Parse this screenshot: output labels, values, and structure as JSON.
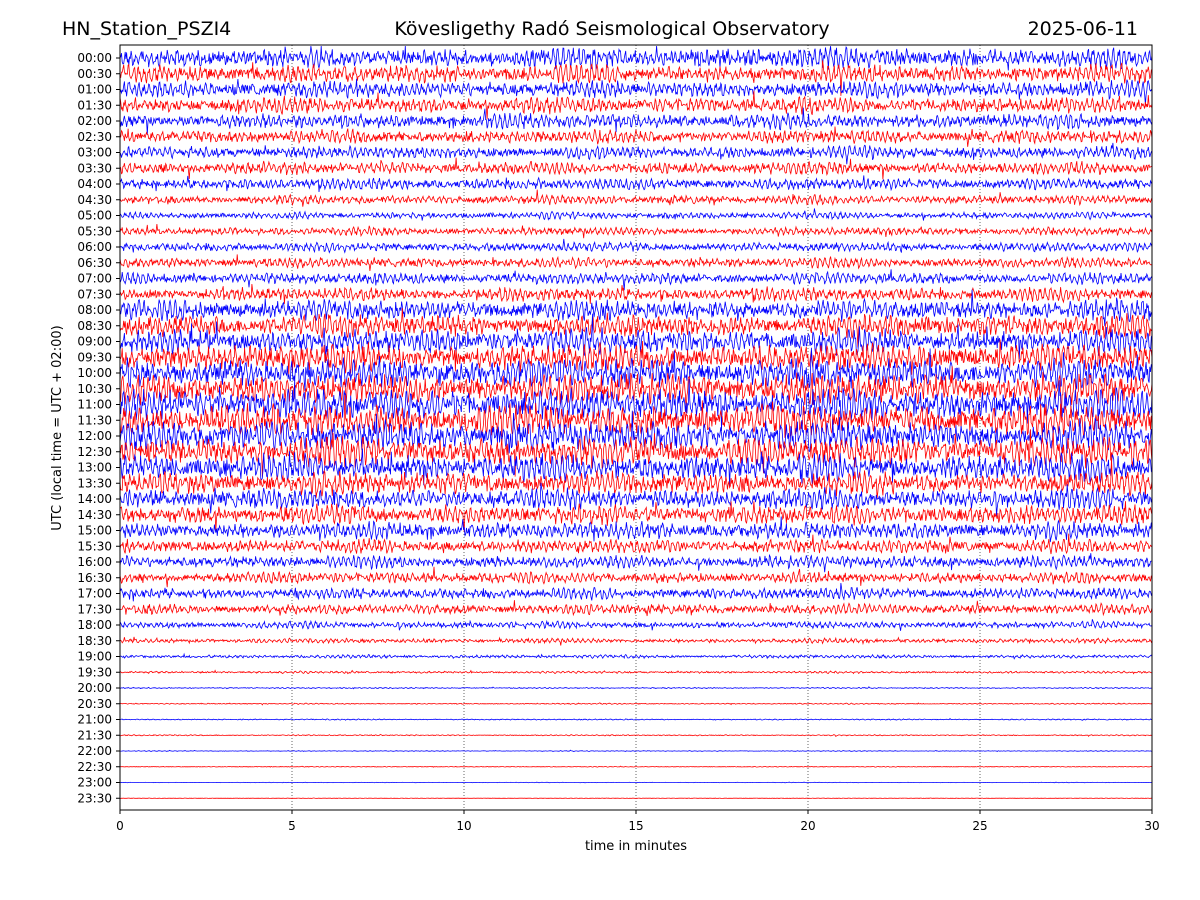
{
  "header": {
    "station": "HN_Station_PSZI4",
    "observatory": "Kövesligethy Radó Seismological Observatory",
    "date": "2025-06-11"
  },
  "chart_data": {
    "type": "line",
    "subtype": "helicorder",
    "xlabel": "time in minutes",
    "ylabel": "UTC (local time = UTC + 02:00)",
    "xlim": [
      0,
      30
    ],
    "x_ticks": [
      "0",
      "5",
      "10",
      "15",
      "20",
      "25",
      "30"
    ],
    "grid": "vertical dotted lines at 5-minute intervals",
    "trace_colors": [
      "#0000ff",
      "#ff0000"
    ],
    "row_labels": [
      "00:00",
      "00:30",
      "01:00",
      "01:30",
      "02:00",
      "02:30",
      "03:00",
      "03:30",
      "04:00",
      "04:30",
      "05:00",
      "05:30",
      "06:00",
      "06:30",
      "07:00",
      "07:30",
      "08:00",
      "08:30",
      "09:00",
      "09:30",
      "10:00",
      "10:30",
      "11:00",
      "11:30",
      "12:00",
      "12:30",
      "13:00",
      "13:30",
      "14:00",
      "14:30",
      "15:00",
      "15:30",
      "16:00",
      "16:30",
      "17:00",
      "17:30",
      "18:00",
      "18:30",
      "19:00",
      "19:30",
      "20:00",
      "20:30",
      "21:00",
      "21:30",
      "22:00",
      "22:30",
      "23:00",
      "23:30"
    ],
    "relative_amplitude": [
      0.9,
      0.8,
      0.75,
      0.7,
      0.65,
      0.6,
      0.55,
      0.55,
      0.5,
      0.4,
      0.3,
      0.35,
      0.4,
      0.45,
      0.5,
      0.6,
      0.9,
      1.0,
      1.1,
      1.2,
      1.3,
      1.35,
      1.4,
      1.4,
      1.35,
      1.3,
      1.2,
      1.0,
      0.9,
      0.85,
      0.75,
      0.6,
      0.55,
      0.5,
      0.5,
      0.45,
      0.3,
      0.2,
      0.15,
      0.1,
      0.05,
      0.05,
      0.05,
      0.05,
      0.03,
      0.03,
      0.02,
      0.02
    ]
  }
}
